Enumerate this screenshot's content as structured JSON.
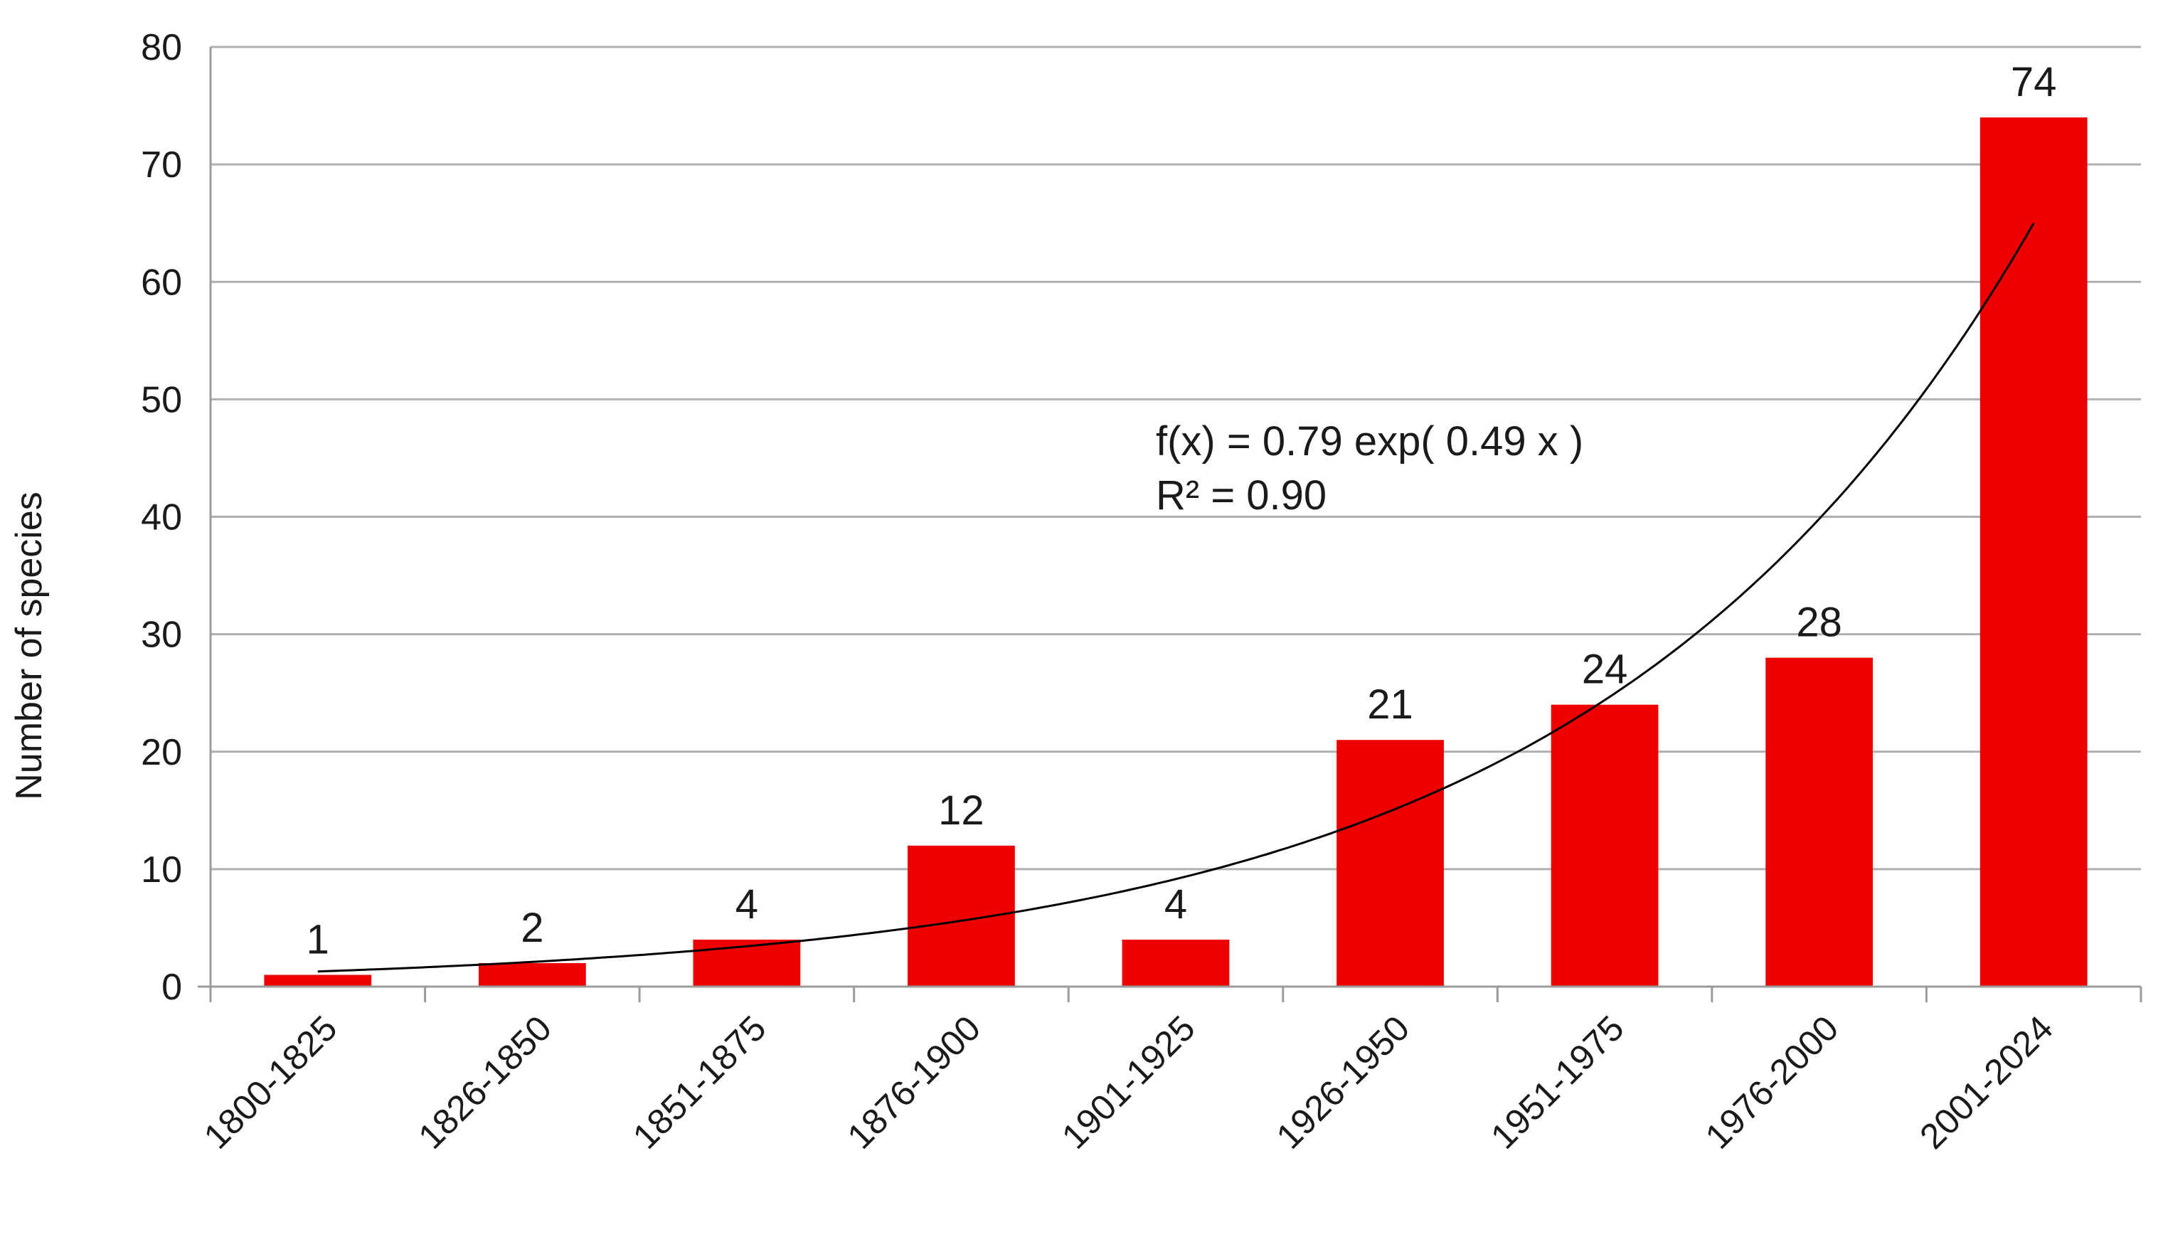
{
  "chart_data": {
    "type": "bar",
    "title": "",
    "xlabel": "",
    "ylabel": "Number of species",
    "ylim": [
      0,
      80
    ],
    "yticks": [
      0,
      10,
      20,
      30,
      40,
      50,
      60,
      70,
      80
    ],
    "grid": true,
    "legend": "none",
    "categories": [
      "1800-1825",
      "1826-1850",
      "1851-1875",
      "1876-1900",
      "1901-1925",
      "1926-1950",
      "1951-1975",
      "1976-2000",
      "2001-2024"
    ],
    "values": [
      1,
      2,
      4,
      12,
      4,
      21,
      24,
      28,
      74
    ],
    "data_labels": [
      "1",
      "2",
      "4",
      "12",
      "4",
      "21",
      "24",
      "28",
      "74"
    ],
    "trendline": {
      "type": "exponential",
      "a": 0.79,
      "b": 0.49,
      "equation": "f(x) = 0.79 exp( 0.49 x )",
      "r_squared": "R² = 0.90"
    },
    "colors": {
      "bar": "#ee0000",
      "trendline": "#000000",
      "grid": "#b0b0b0",
      "axis": "#9a9a9a"
    }
  }
}
